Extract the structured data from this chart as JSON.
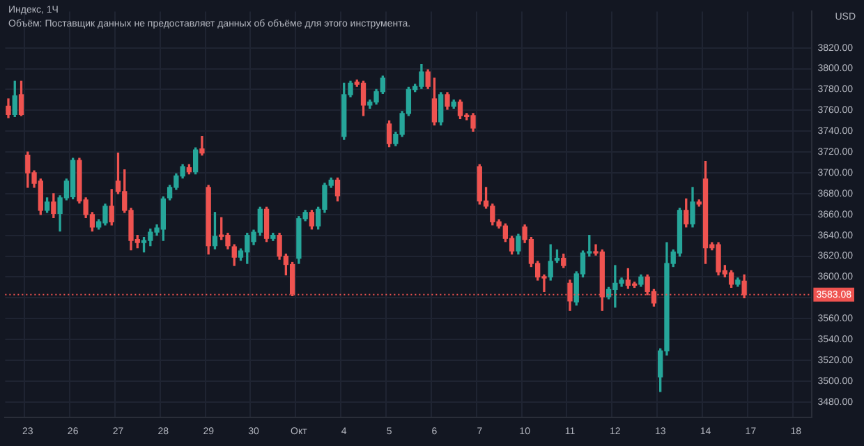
{
  "chart_data": {
    "type": "candlestick",
    "title": "Индекс, 1Ч",
    "ylabel": "USD",
    "annotations": [
      "Объём: Поставщик данных не предоставляет данных об объёме для этого инструмента."
    ],
    "categories": [
      null,
      null,
      null,
      "23",
      null,
      null,
      null,
      null,
      null,
      null,
      "26",
      null,
      null,
      null,
      null,
      null,
      null,
      "27",
      null,
      null,
      null,
      null,
      null,
      null,
      "28",
      null,
      null,
      null,
      null,
      null,
      null,
      "29",
      null,
      null,
      null,
      null,
      null,
      null,
      "30",
      null,
      null,
      null,
      null,
      null,
      null,
      "Окт",
      null,
      null,
      null,
      null,
      null,
      null,
      "4",
      null,
      null,
      null,
      null,
      null,
      null,
      "5",
      null,
      null,
      null,
      null,
      null,
      null,
      "6",
      null,
      null,
      null,
      null,
      null,
      null,
      "7",
      null,
      null,
      null,
      null,
      null,
      null,
      "10",
      null,
      null,
      null,
      null,
      null,
      null,
      "11",
      null,
      null,
      null,
      null,
      null,
      null,
      "12",
      null,
      null,
      null,
      null,
      null,
      null,
      "13",
      null,
      null,
      null,
      null,
      null,
      null,
      "14",
      null,
      null,
      null,
      null,
      null,
      null,
      "17",
      null,
      null,
      null,
      null,
      null,
      null,
      "18",
      null,
      null
    ],
    "ohlc": [
      [
        3764,
        3771,
        3753,
        3756
      ],
      [
        3756,
        3788,
        3754,
        3774
      ],
      [
        3775,
        3788,
        3755,
        3756
      ],
      [
        3717,
        3720,
        3686,
        3700
      ],
      [
        3700,
        3702,
        3686,
        3690
      ],
      [
        3692,
        3694,
        3660,
        3664
      ],
      [
        3664,
        3676,
        3662,
        3672
      ],
      [
        3672,
        3680,
        3657,
        3661
      ],
      [
        3661,
        3678,
        3644,
        3676
      ],
      [
        3676,
        3694,
        3674,
        3692
      ],
      [
        3677,
        3714,
        3675,
        3712
      ],
      [
        3712,
        3714,
        3671,
        3673
      ],
      [
        3674,
        3676,
        3657,
        3660
      ],
      [
        3660,
        3662,
        3644,
        3648
      ],
      [
        3648,
        3655,
        3646,
        3653
      ],
      [
        3652,
        3670,
        3650,
        3668
      ],
      [
        3668,
        3684,
        3650,
        3653
      ],
      [
        3692,
        3719,
        3680,
        3682
      ],
      [
        3682,
        3703,
        3662,
        3664
      ],
      [
        3664,
        3666,
        3626,
        3635
      ],
      [
        3636,
        3640,
        3628,
        3633
      ],
      [
        3633,
        3638,
        3624,
        3635
      ],
      [
        3635,
        3646,
        3630,
        3643
      ],
      [
        3643,
        3650,
        3640,
        3647
      ],
      [
        3646,
        3677,
        3635,
        3675
      ],
      [
        3676,
        3688,
        3674,
        3686
      ],
      [
        3686,
        3699,
        3684,
        3697
      ],
      [
        3697,
        3708,
        3695,
        3706
      ],
      [
        3705,
        3708,
        3699,
        3701
      ],
      [
        3701,
        3724,
        3699,
        3722
      ],
      [
        3723,
        3735,
        3717,
        3719
      ],
      [
        3686,
        3688,
        3622,
        3630
      ],
      [
        3630,
        3662,
        3627,
        3639
      ],
      [
        3640,
        3657,
        3636,
        3639
      ],
      [
        3640,
        3642,
        3627,
        3630
      ],
      [
        3629,
        3631,
        3611,
        3619
      ],
      [
        3619,
        3627,
        3616,
        3625
      ],
      [
        3624,
        3642,
        3613,
        3640
      ],
      [
        3634,
        3645,
        3631,
        3643
      ],
      [
        3643,
        3667,
        3640,
        3665
      ],
      [
        3665,
        3667,
        3634,
        3637
      ],
      [
        3637,
        3642,
        3635,
        3640
      ],
      [
        3640,
        3642,
        3617,
        3620
      ],
      [
        3620,
        3622,
        3602,
        3612
      ],
      [
        3612,
        3614,
        3582,
        3584
      ],
      [
        3618,
        3658,
        3613,
        3656
      ],
      [
        3656,
        3664,
        3654,
        3662
      ],
      [
        3662,
        3664,
        3646,
        3649
      ],
      [
        3649,
        3667,
        3646,
        3665
      ],
      [
        3665,
        3690,
        3662,
        3688
      ],
      [
        3688,
        3695,
        3686,
        3693
      ],
      [
        3693,
        3695,
        3673,
        3678
      ],
      [
        3735,
        3786,
        3732,
        3775
      ],
      [
        3775,
        3788,
        3773,
        3786
      ],
      [
        3787,
        3789,
        3783,
        3785
      ],
      [
        3786,
        3788,
        3755,
        3765
      ],
      [
        3765,
        3770,
        3762,
        3768
      ],
      [
        3768,
        3780,
        3766,
        3778
      ],
      [
        3778,
        3793,
        3776,
        3791
      ],
      [
        3747,
        3750,
        3725,
        3728
      ],
      [
        3728,
        3739,
        3726,
        3737
      ],
      [
        3737,
        3759,
        3735,
        3757
      ],
      [
        3757,
        3782,
        3755,
        3780
      ],
      [
        3780,
        3785,
        3778,
        3783
      ],
      [
        3783,
        3804,
        3781,
        3797
      ],
      [
        3797,
        3799,
        3781,
        3783
      ],
      [
        3771,
        3791,
        3746,
        3749
      ],
      [
        3749,
        3777,
        3746,
        3775
      ],
      [
        3775,
        3777,
        3761,
        3764
      ],
      [
        3764,
        3770,
        3762,
        3768
      ],
      [
        3768,
        3770,
        3752,
        3755
      ],
      [
        3755,
        3757,
        3751,
        3754
      ],
      [
        3755,
        3757,
        3740,
        3743
      ],
      [
        3706,
        3708,
        3670,
        3673
      ],
      [
        3673,
        3686,
        3666,
        3668
      ],
      [
        3668,
        3670,
        3650,
        3653
      ],
      [
        3653,
        3655,
        3647,
        3649
      ],
      [
        3649,
        3651,
        3634,
        3637
      ],
      [
        3637,
        3639,
        3622,
        3625
      ],
      [
        3625,
        3641,
        3622,
        3639
      ],
      [
        3648,
        3650,
        3633,
        3636
      ],
      [
        3636,
        3638,
        3610,
        3613
      ],
      [
        3613,
        3615,
        3597,
        3600
      ],
      [
        3600,
        3602,
        3586,
        3599
      ],
      [
        3600,
        3631,
        3597,
        3615
      ],
      [
        3616,
        3626,
        3614,
        3618
      ],
      [
        3618,
        3622,
        3609,
        3611
      ],
      [
        3594,
        3597,
        3568,
        3577
      ],
      [
        3576,
        3605,
        3573,
        3603
      ],
      [
        3603,
        3625,
        3600,
        3623
      ],
      [
        3623,
        3640,
        3620,
        3624
      ],
      [
        3624,
        3631,
        3621,
        3623
      ],
      [
        3624,
        3626,
        3568,
        3581
      ],
      [
        3581,
        3590,
        3579,
        3588
      ],
      [
        3588,
        3611,
        3571,
        3594
      ],
      [
        3594,
        3599,
        3591,
        3597
      ],
      [
        3597,
        3608,
        3589,
        3592
      ],
      [
        3593,
        3595,
        3590,
        3592
      ],
      [
        3593,
        3602,
        3591,
        3600
      ],
      [
        3600,
        3602,
        3583,
        3586
      ],
      [
        3586,
        3588,
        3572,
        3575
      ],
      [
        3504,
        3531,
        3490,
        3529
      ],
      [
        3529,
        3633,
        3525,
        3613
      ],
      [
        3613,
        3626,
        3610,
        3624
      ],
      [
        3623,
        3666,
        3620,
        3664
      ],
      [
        3664,
        3675,
        3648,
        3651
      ],
      [
        3651,
        3686,
        3648,
        3672
      ],
      [
        3672,
        3674,
        3668,
        3670
      ],
      [
        3694,
        3711,
        3613,
        3628
      ],
      [
        3631,
        3633,
        3626,
        3628
      ],
      [
        3631,
        3633,
        3602,
        3605
      ],
      [
        3606,
        3611,
        3600,
        3603
      ],
      [
        3604,
        3606,
        3590,
        3593
      ],
      [
        3593,
        3599,
        3591,
        3597
      ],
      [
        3596,
        3602,
        3580,
        3583.08
      ],
      null,
      null,
      null,
      null,
      null,
      null,
      null,
      null,
      null,
      null
    ],
    "colors": [
      "#ef5350",
      "#26a69a",
      "#ef5350",
      "#ef5350",
      "#ef5350",
      "#ef5350",
      "#26a69a",
      "#ef5350",
      "#26a69a",
      "#26a69a",
      "#26a69a",
      "#ef5350",
      "#ef5350",
      "#ef5350",
      "#26a69a",
      "#26a69a",
      "#ef5350",
      "#ef5350",
      "#ef5350",
      "#ef5350",
      "#ef5350",
      "#26a69a",
      "#26a69a",
      "#26a69a",
      "#26a69a",
      "#26a69a",
      "#26a69a",
      "#26a69a",
      "#ef5350",
      "#26a69a",
      "#ef5350",
      "#ef5350",
      "#26a69a",
      "#ef5350",
      "#ef5350",
      "#ef5350",
      "#26a69a",
      "#26a69a",
      "#26a69a",
      "#26a69a",
      "#ef5350",
      "#26a69a",
      "#ef5350",
      "#ef5350",
      "#ef5350",
      "#26a69a",
      "#26a69a",
      "#ef5350",
      "#26a69a",
      "#26a69a",
      "#26a69a",
      "#ef5350",
      "#26a69a",
      "#26a69a",
      "#ef5350",
      "#ef5350",
      "#26a69a",
      "#26a69a",
      "#26a69a",
      "#ef5350",
      "#26a69a",
      "#26a69a",
      "#26a69a",
      "#26a69a",
      "#26a69a",
      "#ef5350",
      "#ef5350",
      "#26a69a",
      "#ef5350",
      "#26a69a",
      "#ef5350",
      "#ef5350",
      "#ef5350",
      "#ef5350",
      "#ef5350",
      "#ef5350",
      "#ef5350",
      "#ef5350",
      "#ef5350",
      "#26a69a",
      "#ef5350",
      "#ef5350",
      "#ef5350",
      "#ef5350",
      "#26a69a",
      "#26a69a",
      "#ef5350",
      "#ef5350",
      "#26a69a",
      "#26a69a",
      "#26a69a",
      "#ef5350",
      "#ef5350",
      "#26a69a",
      "#26a69a",
      "#26a69a",
      "#ef5350",
      "#ef5350",
      "#26a69a",
      "#ef5350",
      "#ef5350",
      "#26a69a",
      "#26a69a",
      "#26a69a",
      "#26a69a",
      "#ef5350",
      "#26a69a",
      "#ef5350",
      "#ef5350",
      "#ef5350",
      "#ef5350",
      "#ef5350",
      "#ef5350",
      "#26a69a",
      "#ef5350",
      null,
      null,
      null,
      null,
      null,
      null,
      null,
      null,
      null,
      null
    ],
    "ylim": [
      3465,
      3855
    ],
    "yticks": [
      {
        "value": 3480,
        "label": "3480.00"
      },
      {
        "value": 3500,
        "label": "3500.00"
      },
      {
        "value": 3520,
        "label": "3520.00"
      },
      {
        "value": 3540,
        "label": "3540.00"
      },
      {
        "value": 3560,
        "label": "3560.00"
      },
      {
        "value": 3580,
        "label": null
      },
      {
        "value": 3600,
        "label": "3600.00"
      },
      {
        "value": 3620,
        "label": "3620.00"
      },
      {
        "value": 3640,
        "label": "3640.00"
      },
      {
        "value": 3660,
        "label": "3660.00"
      },
      {
        "value": 3680,
        "label": "3680.00"
      },
      {
        "value": 3700,
        "label": "3700.00"
      },
      {
        "value": 3720,
        "label": "3720.00"
      },
      {
        "value": 3740,
        "label": "3740.00"
      },
      {
        "value": 3760,
        "label": "3760.00"
      },
      {
        "value": 3780,
        "label": "3780.00"
      },
      {
        "value": 3800,
        "label": "3800.00"
      },
      {
        "value": 3820,
        "label": "3820.00"
      }
    ],
    "ref_lines": [
      {
        "axis": "y",
        "value": 3583.08,
        "label": "3583.08",
        "color": "#ef5350",
        "line_style": "dotted"
      }
    ],
    "grid": true,
    "legend": false
  }
}
